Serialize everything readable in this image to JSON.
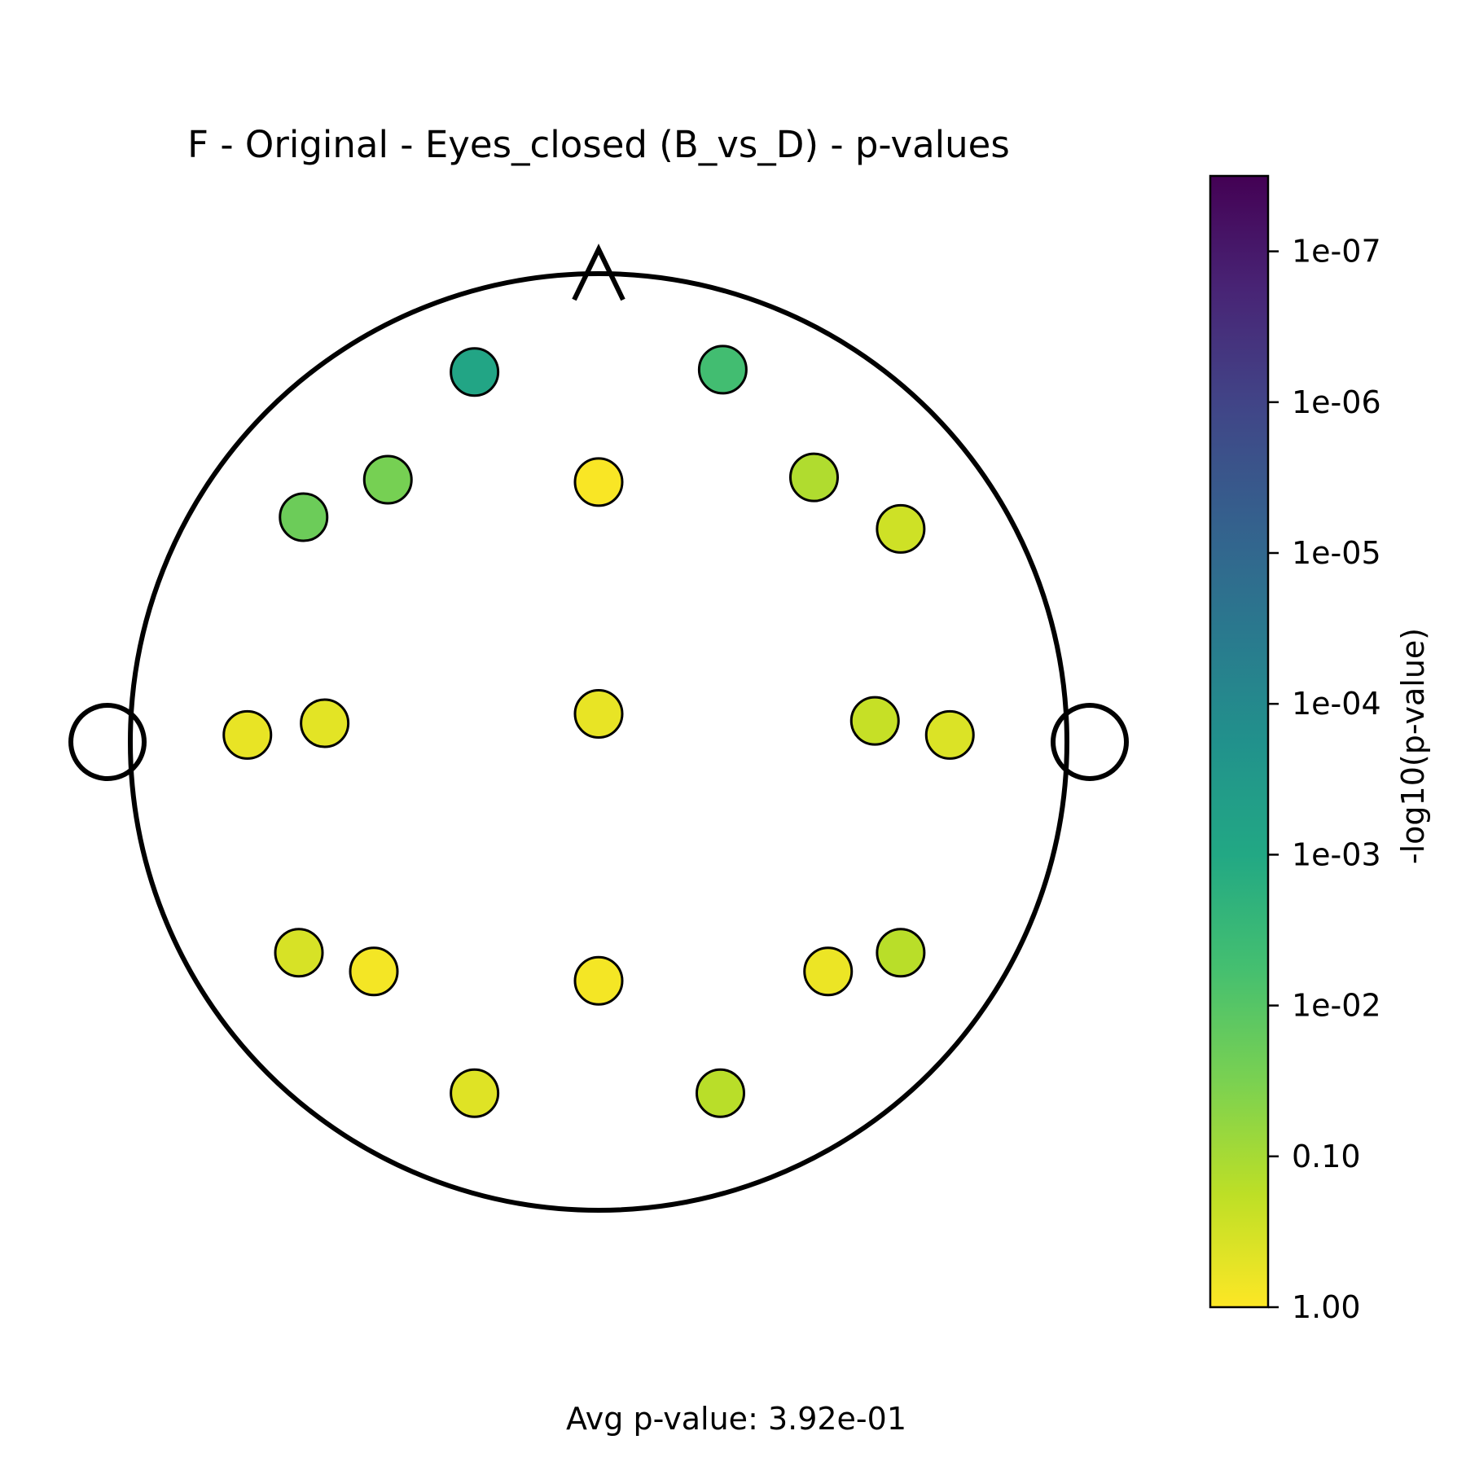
{
  "chart_data": {
    "type": "scatter",
    "title": "F - Original - Eyes_closed (B_vs_D) - p-values",
    "footer": "Avg p-value: 3.92e-01",
    "colorbar": {
      "label": "-log10(p-value)",
      "colormap": "viridis",
      "range": [
        0,
        7.5
      ],
      "ticks": [
        {
          "value": 0,
          "label": "1.00"
        },
        {
          "value": 1,
          "label": "0.10"
        },
        {
          "value": 2,
          "label": "1e-02"
        },
        {
          "value": 3,
          "label": "1e-03"
        },
        {
          "value": 4,
          "label": "1e-04"
        },
        {
          "value": 5,
          "label": "1e-05"
        },
        {
          "value": 6,
          "label": "1e-06"
        },
        {
          "value": 7,
          "label": "1e-07"
        }
      ]
    },
    "points": [
      {
        "x": -0.265,
        "y": 0.79,
        "value": 3.1
      },
      {
        "x": 0.265,
        "y": 0.795,
        "value": 2.3
      },
      {
        "x": -0.45,
        "y": 0.56,
        "value": 1.55
      },
      {
        "x": 0.0,
        "y": 0.555,
        "value": 0.05
      },
      {
        "x": 0.46,
        "y": 0.565,
        "value": 0.9
      },
      {
        "x": -0.63,
        "y": 0.48,
        "value": 1.7
      },
      {
        "x": 0.645,
        "y": 0.455,
        "value": 0.55
      },
      {
        "x": -0.75,
        "y": 0.015,
        "value": 0.25
      },
      {
        "x": -0.585,
        "y": 0.04,
        "value": 0.3
      },
      {
        "x": 0.0,
        "y": 0.06,
        "value": 0.25
      },
      {
        "x": 0.59,
        "y": 0.045,
        "value": 0.65
      },
      {
        "x": 0.75,
        "y": 0.015,
        "value": 0.4
      },
      {
        "x": -0.64,
        "y": -0.45,
        "value": 0.45
      },
      {
        "x": -0.48,
        "y": -0.49,
        "value": 0.1
      },
      {
        "x": 0.0,
        "y": -0.51,
        "value": 0.1
      },
      {
        "x": 0.49,
        "y": -0.49,
        "value": 0.2
      },
      {
        "x": 0.645,
        "y": -0.45,
        "value": 0.8
      },
      {
        "x": -0.265,
        "y": -0.75,
        "value": 0.35
      },
      {
        "x": 0.26,
        "y": -0.75,
        "value": 0.8
      }
    ]
  }
}
